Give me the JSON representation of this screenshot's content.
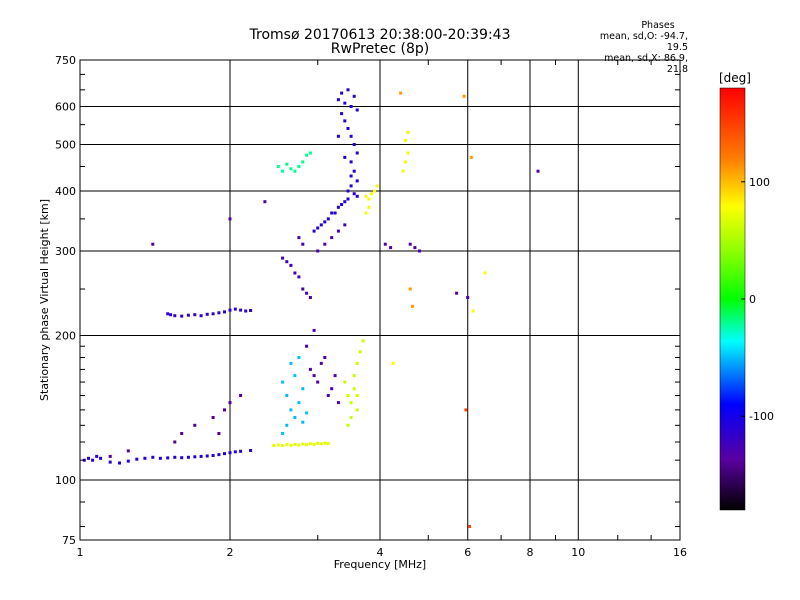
{
  "chart_data": {
    "type": "scatter",
    "title_line1": "Tromsø 20170613 20:38:00-20:39:43",
    "title_line2": "RwPretec (8p)",
    "xlabel": "Frequency [MHz]",
    "ylabel": "Stationary phase Virtual Height [km]",
    "x_scale": "log",
    "y_scale": "log",
    "xlim": [
      1,
      16
    ],
    "ylim": [
      75,
      750
    ],
    "x_ticks": [
      1,
      2,
      4,
      6,
      8,
      10,
      16
    ],
    "x_tick_labels": [
      "1",
      "2",
      "4",
      "6",
      "8",
      "10",
      "16"
    ],
    "y_ticks": [
      75,
      100,
      200,
      300,
      400,
      500,
      600,
      750
    ],
    "y_tick_labels": [
      "75",
      "100",
      "200",
      "300",
      "400",
      "500",
      "600",
      "750"
    ],
    "grid": true,
    "phases_info": {
      "heading": "Phases",
      "line_o": "mean, sd,O: -94.7, 19.5",
      "line_x": "mean, sd,X:  86.9, 21.8"
    },
    "colorbar": {
      "label": "[deg]",
      "range": [
        -180,
        180
      ],
      "ticks": [
        100,
        0,
        -100
      ],
      "tick_labels": [
        "100",
        "0",
        "-100"
      ]
    },
    "series": [
      {
        "color_phase": -110,
        "points": [
          [
            1.02,
            110
          ],
          [
            1.04,
            111
          ],
          [
            1.06,
            110
          ],
          [
            1.08,
            112
          ],
          [
            1.1,
            111
          ],
          [
            1.15,
            109
          ],
          [
            1.2,
            108.5
          ],
          [
            1.25,
            109.5
          ],
          [
            1.3,
            110.5
          ],
          [
            1.35,
            111
          ],
          [
            1.4,
            111.5
          ],
          [
            1.45,
            111
          ],
          [
            1.5,
            111.2
          ],
          [
            1.55,
            111.5
          ],
          [
            1.6,
            111.3
          ],
          [
            1.65,
            111.5
          ],
          [
            1.7,
            111.8
          ],
          [
            1.75,
            112
          ],
          [
            1.8,
            112.2
          ],
          [
            1.85,
            112.5
          ],
          [
            1.9,
            113
          ],
          [
            1.95,
            113.5
          ],
          [
            2.0,
            114
          ],
          [
            2.05,
            114.5
          ],
          [
            2.1,
            114.8
          ],
          [
            2.2,
            115.2
          ]
        ]
      },
      {
        "color_phase": -115,
        "points": [
          [
            1.5,
            222
          ],
          [
            1.52,
            221
          ],
          [
            1.55,
            220
          ],
          [
            1.6,
            219.5
          ],
          [
            1.65,
            220.5
          ],
          [
            1.7,
            221
          ],
          [
            1.75,
            220
          ],
          [
            1.8,
            221.5
          ],
          [
            1.85,
            222
          ],
          [
            1.9,
            223
          ],
          [
            1.95,
            224
          ],
          [
            2.0,
            226
          ],
          [
            2.05,
            227
          ],
          [
            2.1,
            226
          ],
          [
            2.15,
            225
          ],
          [
            2.2,
            225.5
          ]
        ]
      },
      {
        "color_phase": 70,
        "points": [
          [
            2.45,
            118
          ],
          [
            2.5,
            118.3
          ],
          [
            2.55,
            118
          ],
          [
            2.6,
            118.5
          ],
          [
            2.65,
            118.2
          ],
          [
            2.7,
            118.6
          ],
          [
            2.75,
            118.3
          ],
          [
            2.8,
            118.8
          ],
          [
            2.85,
            118.5
          ],
          [
            2.9,
            119
          ],
          [
            2.95,
            118.7
          ],
          [
            3.0,
            119.2
          ],
          [
            3.05,
            119
          ],
          [
            3.1,
            119.3
          ],
          [
            3.15,
            119.1
          ]
        ]
      },
      {
        "color_phase": -110,
        "points": [
          [
            3.3,
            620
          ],
          [
            3.35,
            640
          ],
          [
            3.4,
            610
          ],
          [
            3.45,
            650
          ],
          [
            3.5,
            600
          ],
          [
            3.55,
            630
          ],
          [
            3.6,
            590
          ],
          [
            3.4,
            560
          ],
          [
            3.45,
            540
          ],
          [
            3.5,
            520
          ],
          [
            3.55,
            500
          ],
          [
            3.6,
            480
          ],
          [
            3.5,
            460
          ],
          [
            3.55,
            440
          ],
          [
            3.6,
            420
          ],
          [
            3.5,
            410
          ],
          [
            3.45,
            400
          ],
          [
            3.55,
            395
          ],
          [
            3.6,
            390
          ],
          [
            3.4,
            380
          ],
          [
            3.3,
            370
          ],
          [
            3.2,
            360
          ],
          [
            3.1,
            345
          ],
          [
            3.0,
            335
          ],
          [
            2.95,
            330
          ],
          [
            3.05,
            340
          ],
          [
            3.15,
            350
          ],
          [
            3.25,
            360
          ],
          [
            3.35,
            375
          ],
          [
            3.45,
            385
          ],
          [
            3.5,
            430
          ],
          [
            3.4,
            470
          ],
          [
            3.3,
            520
          ],
          [
            3.35,
            580
          ]
        ]
      },
      {
        "color_phase": 60,
        "points": [
          [
            3.4,
            160
          ],
          [
            3.45,
            150
          ],
          [
            3.5,
            145
          ],
          [
            3.55,
            155
          ],
          [
            3.6,
            140
          ],
          [
            3.5,
            135
          ],
          [
            3.45,
            130
          ],
          [
            3.55,
            165
          ],
          [
            3.6,
            175
          ],
          [
            3.65,
            185
          ],
          [
            3.7,
            195
          ],
          [
            3.6,
            150
          ]
        ]
      },
      {
        "color_phase": 75,
        "points": [
          [
            3.75,
            390
          ],
          [
            3.8,
            385
          ],
          [
            3.85,
            395
          ],
          [
            3.9,
            400
          ],
          [
            3.95,
            410
          ],
          [
            3.8,
            370
          ],
          [
            3.75,
            360
          ],
          [
            4.45,
            440
          ],
          [
            4.5,
            460
          ],
          [
            4.55,
            480
          ],
          [
            4.5,
            510
          ],
          [
            4.55,
            530
          ]
        ]
      },
      {
        "color_phase": -50,
        "points": [
          [
            2.55,
            160
          ],
          [
            2.6,
            150
          ],
          [
            2.65,
            140
          ],
          [
            2.7,
            135
          ],
          [
            2.6,
            130
          ],
          [
            2.55,
            125
          ],
          [
            2.75,
            145
          ],
          [
            2.8,
            155
          ],
          [
            2.7,
            165
          ],
          [
            2.65,
            175
          ],
          [
            2.75,
            180
          ],
          [
            2.8,
            132
          ],
          [
            2.85,
            138
          ]
        ]
      },
      {
        "color_phase": -130,
        "points": [
          [
            2.9,
            170
          ],
          [
            2.95,
            165
          ],
          [
            3.0,
            160
          ],
          [
            3.05,
            175
          ],
          [
            3.1,
            180
          ],
          [
            3.15,
            150
          ],
          [
            3.2,
            155
          ],
          [
            3.25,
            165
          ],
          [
            3.3,
            145
          ],
          [
            2.85,
            190
          ],
          [
            2.95,
            205
          ]
        ]
      },
      {
        "color_phase": -20,
        "points": [
          [
            2.5,
            450
          ],
          [
            2.55,
            440
          ],
          [
            2.6,
            455
          ],
          [
            2.65,
            445
          ],
          [
            2.7,
            440
          ],
          [
            2.75,
            450
          ],
          [
            2.8,
            460
          ],
          [
            2.85,
            475
          ],
          [
            2.9,
            480
          ]
        ]
      },
      {
        "color_phase": -125,
        "points": [
          [
            2.55,
            290
          ],
          [
            2.6,
            285
          ],
          [
            2.65,
            280
          ],
          [
            2.7,
            270
          ],
          [
            2.75,
            265
          ],
          [
            2.8,
            250
          ],
          [
            2.85,
            245
          ],
          [
            2.9,
            240
          ],
          [
            2.75,
            320
          ],
          [
            2.8,
            310
          ]
        ]
      },
      {
        "color_phase": -130,
        "points": [
          [
            3.0,
            300
          ],
          [
            3.1,
            310
          ],
          [
            3.2,
            320
          ],
          [
            3.3,
            330
          ],
          [
            3.4,
            340
          ],
          [
            4.1,
            310
          ],
          [
            4.2,
            305
          ],
          [
            4.6,
            310
          ],
          [
            4.7,
            305
          ],
          [
            4.8,
            300
          ]
        ]
      },
      {
        "color_phase": 110,
        "points": [
          [
            4.4,
            640
          ],
          [
            5.9,
            630
          ],
          [
            6.1,
            470
          ],
          [
            4.6,
            250
          ],
          [
            4.65,
            230
          ]
        ]
      },
      {
        "color_phase": 150,
        "points": [
          [
            5.95,
            140
          ],
          [
            6.05,
            80
          ]
        ]
      },
      {
        "color_phase": -140,
        "points": [
          [
            1.7,
            130
          ],
          [
            1.85,
            135
          ],
          [
            1.9,
            125
          ],
          [
            1.95,
            140
          ],
          [
            2.0,
            145
          ],
          [
            2.1,
            150
          ],
          [
            1.6,
            125
          ],
          [
            1.55,
            120
          ],
          [
            1.4,
            310
          ],
          [
            1.25,
            115
          ],
          [
            1.15,
            112
          ]
        ]
      },
      {
        "color_phase": -140,
        "points": [
          [
            2.0,
            350
          ],
          [
            2.35,
            380
          ],
          [
            5.7,
            245
          ],
          [
            8.3,
            440
          ],
          [
            6.0,
            240
          ]
        ]
      },
      {
        "color_phase": 80,
        "points": [
          [
            6.5,
            270
          ],
          [
            6.15,
            225
          ],
          [
            4.25,
            175
          ]
        ]
      }
    ]
  }
}
